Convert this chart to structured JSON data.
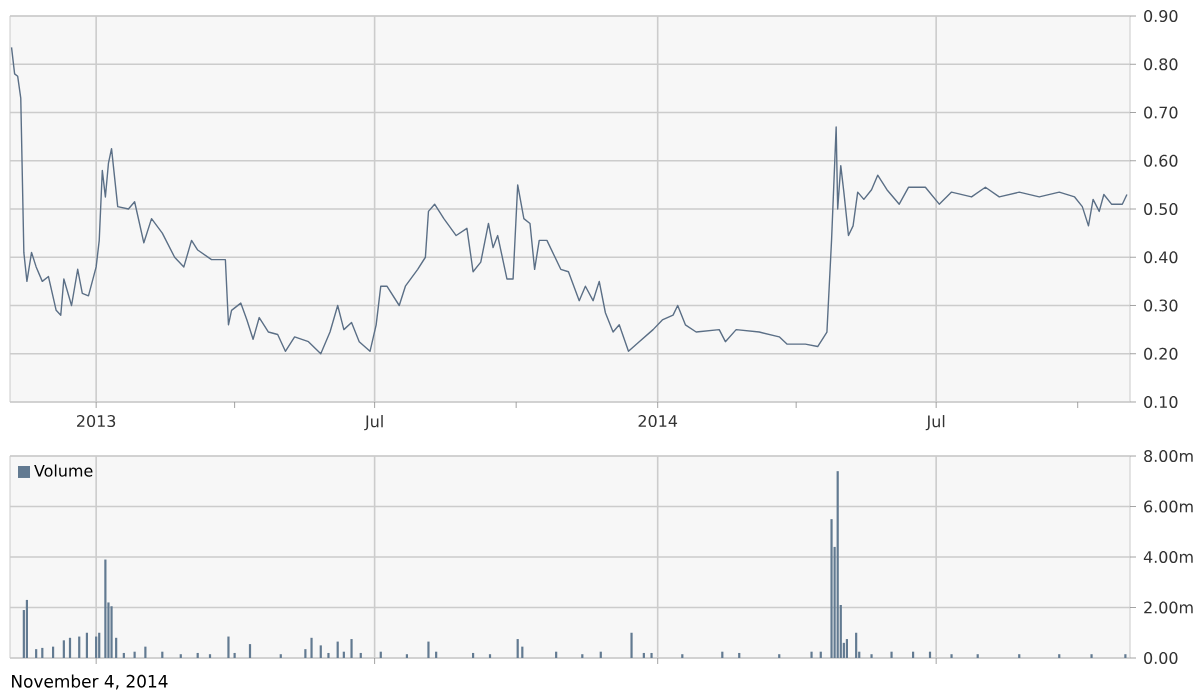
{
  "chart_data": [
    {
      "type": "line",
      "color": "#5b6f86",
      "grid": true,
      "x": [
        "2012-11-07",
        "2012-11-09",
        "2012-11-11",
        "2012-11-13",
        "2012-11-15",
        "2012-11-17",
        "2012-11-20",
        "2012-11-23",
        "2012-11-27",
        "2012-12-01",
        "2012-12-06",
        "2012-12-09",
        "2012-12-11",
        "2012-12-16",
        "2012-12-20",
        "2012-12-23",
        "2012-12-27",
        "2013-01-01",
        "2013-01-03",
        "2013-01-05",
        "2013-01-07",
        "2013-01-09",
        "2013-01-11",
        "2013-01-15",
        "2013-01-22",
        "2013-01-26",
        "2013-02-01",
        "2013-02-06",
        "2013-02-13",
        "2013-02-21",
        "2013-02-27",
        "2013-03-04",
        "2013-03-08",
        "2013-03-17",
        "2013-03-26",
        "2013-03-28",
        "2013-03-30",
        "2013-04-05",
        "2013-04-09",
        "2013-04-13",
        "2013-04-17",
        "2013-04-23",
        "2013-04-29",
        "2013-05-04",
        "2013-05-10",
        "2013-05-19",
        "2013-05-27",
        "2013-06-02",
        "2013-06-07",
        "2013-06-11",
        "2013-06-16",
        "2013-06-21",
        "2013-06-28",
        "2013-07-02",
        "2013-07-05",
        "2013-07-09",
        "2013-07-17",
        "2013-07-21",
        "2013-07-29",
        "2013-08-03",
        "2013-08-05",
        "2013-08-09",
        "2013-08-15",
        "2013-08-23",
        "2013-08-30",
        "2013-09-03",
        "2013-09-08",
        "2013-09-13",
        "2013-09-16",
        "2013-09-19",
        "2013-09-25",
        "2013-09-29",
        "2013-10-02",
        "2013-10-06",
        "2013-10-10",
        "2013-10-13",
        "2013-10-16",
        "2013-10-21",
        "2013-10-30",
        "2013-11-04",
        "2013-11-11",
        "2013-11-15",
        "2013-11-20",
        "2013-11-24",
        "2013-11-28",
        "2013-12-03",
        "2013-12-07",
        "2013-12-13",
        "2013-12-20",
        "2013-12-29",
        "2014-01-04",
        "2014-01-11",
        "2014-01-14",
        "2014-01-19",
        "2014-01-26",
        "2014-02-10",
        "2014-02-14",
        "2014-02-21",
        "2014-03-08",
        "2014-03-21",
        "2014-03-26",
        "2014-04-07",
        "2014-04-15",
        "2014-04-21",
        "2014-04-24",
        "2014-04-27",
        "2014-04-28",
        "2014-04-30",
        "2014-05-02",
        "2014-05-05",
        "2014-05-08",
        "2014-05-11",
        "2014-05-15",
        "2014-05-20",
        "2014-05-24",
        "2014-05-30",
        "2014-06-07",
        "2014-06-13",
        "2014-06-24",
        "2014-07-03",
        "2014-07-11",
        "2014-07-24",
        "2014-08-02",
        "2014-08-11",
        "2014-08-24",
        "2014-09-06",
        "2014-09-19",
        "2014-09-29",
        "2014-10-04",
        "2014-10-08",
        "2014-10-11",
        "2014-10-15",
        "2014-10-18",
        "2014-10-23",
        "2014-10-30",
        "2014-11-02"
      ],
      "values": [
        0.835,
        0.78,
        0.775,
        0.73,
        0.41,
        0.35,
        0.41,
        0.38,
        0.35,
        0.36,
        0.29,
        0.28,
        0.355,
        0.3,
        0.375,
        0.325,
        0.32,
        0.38,
        0.435,
        0.58,
        0.525,
        0.595,
        0.625,
        0.505,
        0.5,
        0.515,
        0.43,
        0.48,
        0.45,
        0.4,
        0.38,
        0.435,
        0.415,
        0.395,
        0.395,
        0.26,
        0.29,
        0.305,
        0.27,
        0.23,
        0.275,
        0.245,
        0.24,
        0.205,
        0.235,
        0.225,
        0.2,
        0.245,
        0.3,
        0.25,
        0.265,
        0.225,
        0.205,
        0.26,
        0.34,
        0.34,
        0.3,
        0.34,
        0.375,
        0.4,
        0.495,
        0.51,
        0.48,
        0.445,
        0.46,
        0.37,
        0.39,
        0.47,
        0.42,
        0.445,
        0.355,
        0.355,
        0.55,
        0.48,
        0.47,
        0.375,
        0.435,
        0.435,
        0.375,
        0.37,
        0.31,
        0.34,
        0.31,
        0.35,
        0.285,
        0.245,
        0.26,
        0.205,
        0.225,
        0.25,
        0.27,
        0.28,
        0.3,
        0.26,
        0.245,
        0.25,
        0.225,
        0.25,
        0.245,
        0.235,
        0.22,
        0.22,
        0.215,
        0.245,
        0.435,
        0.67,
        0.5,
        0.59,
        0.535,
        0.445,
        0.465,
        0.535,
        0.52,
        0.54,
        0.57,
        0.54,
        0.51,
        0.545,
        0.545,
        0.51,
        0.535,
        0.525,
        0.545,
        0.525,
        0.535,
        0.525,
        0.535,
        0.525,
        0.505,
        0.465,
        0.52,
        0.495,
        0.53,
        0.51,
        0.51,
        0.53
      ],
      "xlim": [
        "2012-11-06",
        "2014-11-04"
      ],
      "xticks": [
        {
          "value": "2013-01-01",
          "label": "2013"
        },
        {
          "value": "2013-04-01",
          "label": null
        },
        {
          "value": "2013-07-01",
          "label": "Jul"
        },
        {
          "value": "2013-10-01",
          "label": null
        },
        {
          "value": "2014-01-01",
          "label": "2014"
        },
        {
          "value": "2014-04-01",
          "label": null
        },
        {
          "value": "2014-07-01",
          "label": "Jul"
        },
        {
          "value": "2014-10-01",
          "label": null
        }
      ],
      "ylim": [
        0.1,
        0.9
      ],
      "yticks": [
        {
          "value": 0.1,
          "label": "0.10"
        },
        {
          "value": 0.2,
          "label": "0.20"
        },
        {
          "value": 0.3,
          "label": "0.30"
        },
        {
          "value": 0.4,
          "label": "0.40"
        },
        {
          "value": 0.5,
          "label": "0.50"
        },
        {
          "value": 0.6,
          "label": "0.60"
        },
        {
          "value": 0.7,
          "label": "0.70"
        },
        {
          "value": 0.8,
          "label": "0.80"
        },
        {
          "value": 0.9,
          "label": "0.90"
        }
      ]
    },
    {
      "type": "bar",
      "grid": true,
      "legend": "top left",
      "tick_labels": "y",
      "annotations": [
        "November 4, 2014"
      ],
      "x": [
        "2012-11-15",
        "2012-11-17",
        "2012-11-23",
        "2012-11-27",
        "2012-12-04",
        "2012-12-11",
        "2012-12-15",
        "2012-12-21",
        "2012-12-26",
        "2013-01-01",
        "2013-01-03",
        "2013-01-07",
        "2013-01-09",
        "2013-01-11",
        "2013-01-14",
        "2013-01-19",
        "2013-01-26",
        "2013-02-02",
        "2013-02-13",
        "2013-02-25",
        "2013-03-08",
        "2013-03-16",
        "2013-03-28",
        "2013-04-01",
        "2013-04-11",
        "2013-05-01",
        "2013-05-17",
        "2013-05-21",
        "2013-05-27",
        "2013-06-01",
        "2013-06-07",
        "2013-06-11",
        "2013-06-16",
        "2013-06-22",
        "2013-07-05",
        "2013-07-22",
        "2013-08-05",
        "2013-08-10",
        "2013-09-03",
        "2013-09-14",
        "2013-10-02",
        "2013-10-05",
        "2013-10-27",
        "2013-11-13",
        "2013-11-25",
        "2013-12-15",
        "2013-12-23",
        "2013-12-28",
        "2014-01-17",
        "2014-02-12",
        "2014-02-23",
        "2014-03-21",
        "2014-04-11",
        "2014-04-17",
        "2014-04-24",
        "2014-04-26",
        "2014-04-28",
        "2014-04-30",
        "2014-05-02",
        "2014-05-04",
        "2014-05-10",
        "2014-05-12",
        "2014-05-20",
        "2014-06-02",
        "2014-06-16",
        "2014-06-27",
        "2014-07-11",
        "2014-07-28",
        "2014-08-24",
        "2014-09-19",
        "2014-10-10",
        "2014-11-01"
      ],
      "xticks": [
        {
          "value": "2013-01-01",
          "label": null
        },
        {
          "value": "2013-07-01",
          "label": null
        },
        {
          "value": "2014-01-01",
          "label": null
        },
        {
          "value": "2014-07-01",
          "label": null
        }
      ],
      "series": [
        {
          "name": "Volume",
          "color": "#627a91",
          "values": [
            1.9,
            2.3,
            0.35,
            0.4,
            0.45,
            0.7,
            0.8,
            0.85,
            1.0,
            0.85,
            1.0,
            3.9,
            2.2,
            2.05,
            0.8,
            0.2,
            0.25,
            0.45,
            0.25,
            0.15,
            0.2,
            0.15,
            0.85,
            0.2,
            0.55,
            0.15,
            0.35,
            0.8,
            0.5,
            0.2,
            0.65,
            0.25,
            0.75,
            0.2,
            0.25,
            0.15,
            0.65,
            0.25,
            0.2,
            0.15,
            0.75,
            0.45,
            0.25,
            0.15,
            0.25,
            1.0,
            0.2,
            0.2,
            0.15,
            0.25,
            0.2,
            0.15,
            0.25,
            0.25,
            5.5,
            4.4,
            7.4,
            2.1,
            0.6,
            0.75,
            1.0,
            0.25,
            0.15,
            0.25,
            0.25,
            0.25,
            0.15,
            0.15,
            0.15,
            0.15,
            0.15,
            0.15
          ]
        }
      ],
      "xlim": [
        "2012-11-06",
        "2014-11-04"
      ],
      "ylim": [
        0,
        8
      ],
      "yticks": [
        {
          "value": 0,
          "label": "0.00"
        },
        {
          "value": 2,
          "label": "2.00m"
        },
        {
          "value": 4,
          "label": "4.00m"
        },
        {
          "value": 6,
          "label": "6.00m"
        },
        {
          "value": 8,
          "label": "8.00m"
        }
      ]
    }
  ]
}
